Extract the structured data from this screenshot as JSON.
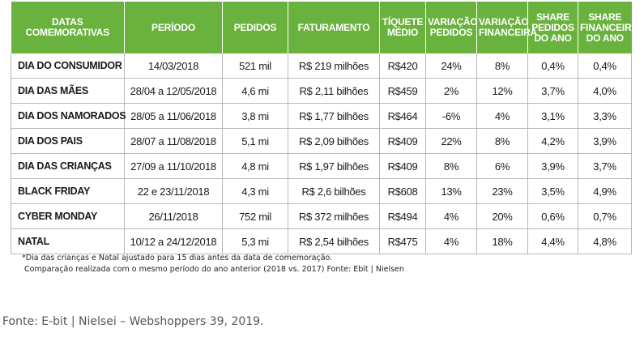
{
  "table": {
    "columns": [
      "DATAS COMEMORATIVAS",
      "PERÍODO",
      "PEDIDOS",
      "FATURAMENTO",
      "TÍQUETE MÉDIO",
      "VARIAÇÃO PEDIDOS",
      "VARIAÇÃO FINANCEIRA",
      "SHARE PEDIDOS DO ANO",
      "SHARE FINANCEIRO DO ANO"
    ],
    "rows": [
      [
        "DIA DO CONSUMIDOR",
        "14/03/2018",
        "521 mil",
        "R$ 219 milhões",
        "R$420",
        "24%",
        "8%",
        "0,4%",
        "0,4%"
      ],
      [
        "DIA DAS MÃES",
        "28/04 a 12/05/2018",
        "4,6 mi",
        "R$ 2,11 bilhões",
        "R$459",
        "2%",
        "12%",
        "3,7%",
        "4,0%"
      ],
      [
        "DIA DOS NAMORADOS",
        "28/05 a 11/06/2018",
        "3,8 mi",
        "R$ 1,77 bilhões",
        "R$464",
        "-6%",
        "4%",
        "3,1%",
        "3,3%"
      ],
      [
        "DIA DOS PAIS",
        "28/07 a 11/08/2018",
        "5,1 mi",
        "R$ 2,09 bilhões",
        "R$409",
        "22%",
        "8%",
        "4,2%",
        "3,9%"
      ],
      [
        "DIA DAS CRIANÇAS",
        "27/09 a 11/10/2018",
        "4,8 mi",
        "R$ 1,97 bilhões",
        "R$409",
        "8%",
        "6%",
        "3,9%",
        "3,7%"
      ],
      [
        "BLACK FRIDAY",
        "22 e 23/11/2018",
        "4,3 mi",
        "R$ 2,6 bilhões",
        "R$608",
        "13%",
        "23%",
        "3,5%",
        "4,9%"
      ],
      [
        "CYBER MONDAY",
        "26/11/2018",
        "752 mil",
        "R$ 372 milhões",
        "R$494",
        "4%",
        "20%",
        "0,6%",
        "0,7%"
      ],
      [
        "NATAL",
        "10/12 a 24/12/2018",
        "5,3 mi",
        "R$ 2,54 bilhões",
        "R$475",
        "4%",
        "18%",
        "4,4%",
        "4,8%"
      ]
    ]
  },
  "notes": {
    "line1": "*Dia das crianças e Natal ajustado para 15 dias antes da data de comemoração.",
    "line2": "Comparação realizada com o mesmo período do ano anterior (2018 vs. 2017) Fonte: Ebit | Nielsen"
  },
  "caption": "Fonte: E-bit | Nielsei – Webshoppers 39, 2019.",
  "colors": {
    "header_bg": "#6ab23e",
    "header_text": "#ffffff",
    "grid": "#b8b8b8"
  }
}
